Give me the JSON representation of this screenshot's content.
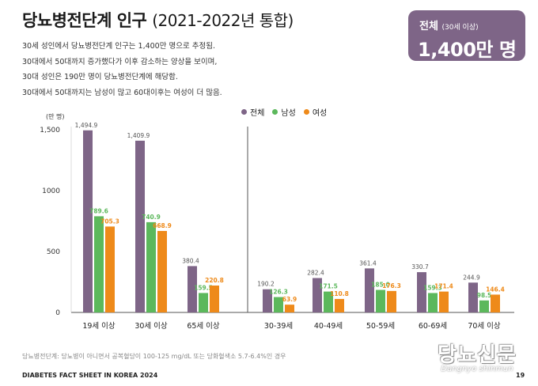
{
  "title": {
    "main": "당뇨병전단계 인구",
    "years": "(2021-2022년 통합)"
  },
  "description": [
    "30세 성인에서 당뇨병전단계 인구는 1,400만 명으로 추정됨.",
    "30대에서 50대까지 증가했다가 이후 감소하는 양상을 보이며,",
    "30대 성인은 190만 명이 당뇨병전단계에 해당함.",
    "30대에서 50대까지는 남성이 많고 60대이후는 여성이 더 많음."
  ],
  "total_box": {
    "label": "전체",
    "sub": "(30세 이상)",
    "value": "1,400만 명"
  },
  "colors": {
    "total": "#7e6587",
    "male": "#5cb85c",
    "female": "#ee8a1a",
    "box": "#7e6587"
  },
  "chart_data": {
    "type": "bar",
    "ylabel": "(만 명)",
    "ylim": [
      0,
      1500
    ],
    "yticks": [
      0,
      500,
      1000,
      1500
    ],
    "ytick_labels": [
      "0",
      "500",
      "1000",
      "1,500"
    ],
    "categories": [
      "19세 이상",
      "30세 이상",
      "65세 이상",
      "30-39세",
      "40-49세",
      "50-59세",
      "60-69세",
      "70세 이상"
    ],
    "series": [
      {
        "name": "전체",
        "values": [
          1494.9,
          1409.9,
          380.4,
          190.2,
          282.4,
          361.4,
          330.7,
          244.9
        ],
        "labels": [
          "1,494.9",
          "1,409.9",
          "380.4",
          "190.2",
          "282.4",
          "361.4",
          "330.7",
          "244.9"
        ]
      },
      {
        "name": "남성",
        "values": [
          789.6,
          740.9,
          159.5,
          126.3,
          171.5,
          185.0,
          159.3,
          98.5
        ],
        "labels": [
          "789.6",
          "740.9",
          "159.5",
          "126.3",
          "171.5",
          "185.0",
          "159.3",
          "98.5"
        ]
      },
      {
        "name": "여성",
        "values": [
          705.3,
          668.9,
          220.8,
          63.9,
          110.8,
          176.3,
          171.4,
          146.4
        ],
        "labels": [
          "705.3",
          "668.9",
          "220.8",
          "63.9",
          "110.8",
          "176.3",
          "171.4",
          "146.4"
        ]
      }
    ],
    "legend_position": "top-center",
    "grid": false
  },
  "footnote": "당뇨병전단계: 당뇨병이 아니면서 공복혈당이 100-125 mg/dL 또는 당화혈색소 5.7-6.4%인 경우",
  "footer": {
    "left": "DIABETES FACT SHEET IN KOREA 2024",
    "page": "19"
  },
  "logo": {
    "ko": "당뇨신문",
    "en": "Dangnyo shinmun"
  }
}
